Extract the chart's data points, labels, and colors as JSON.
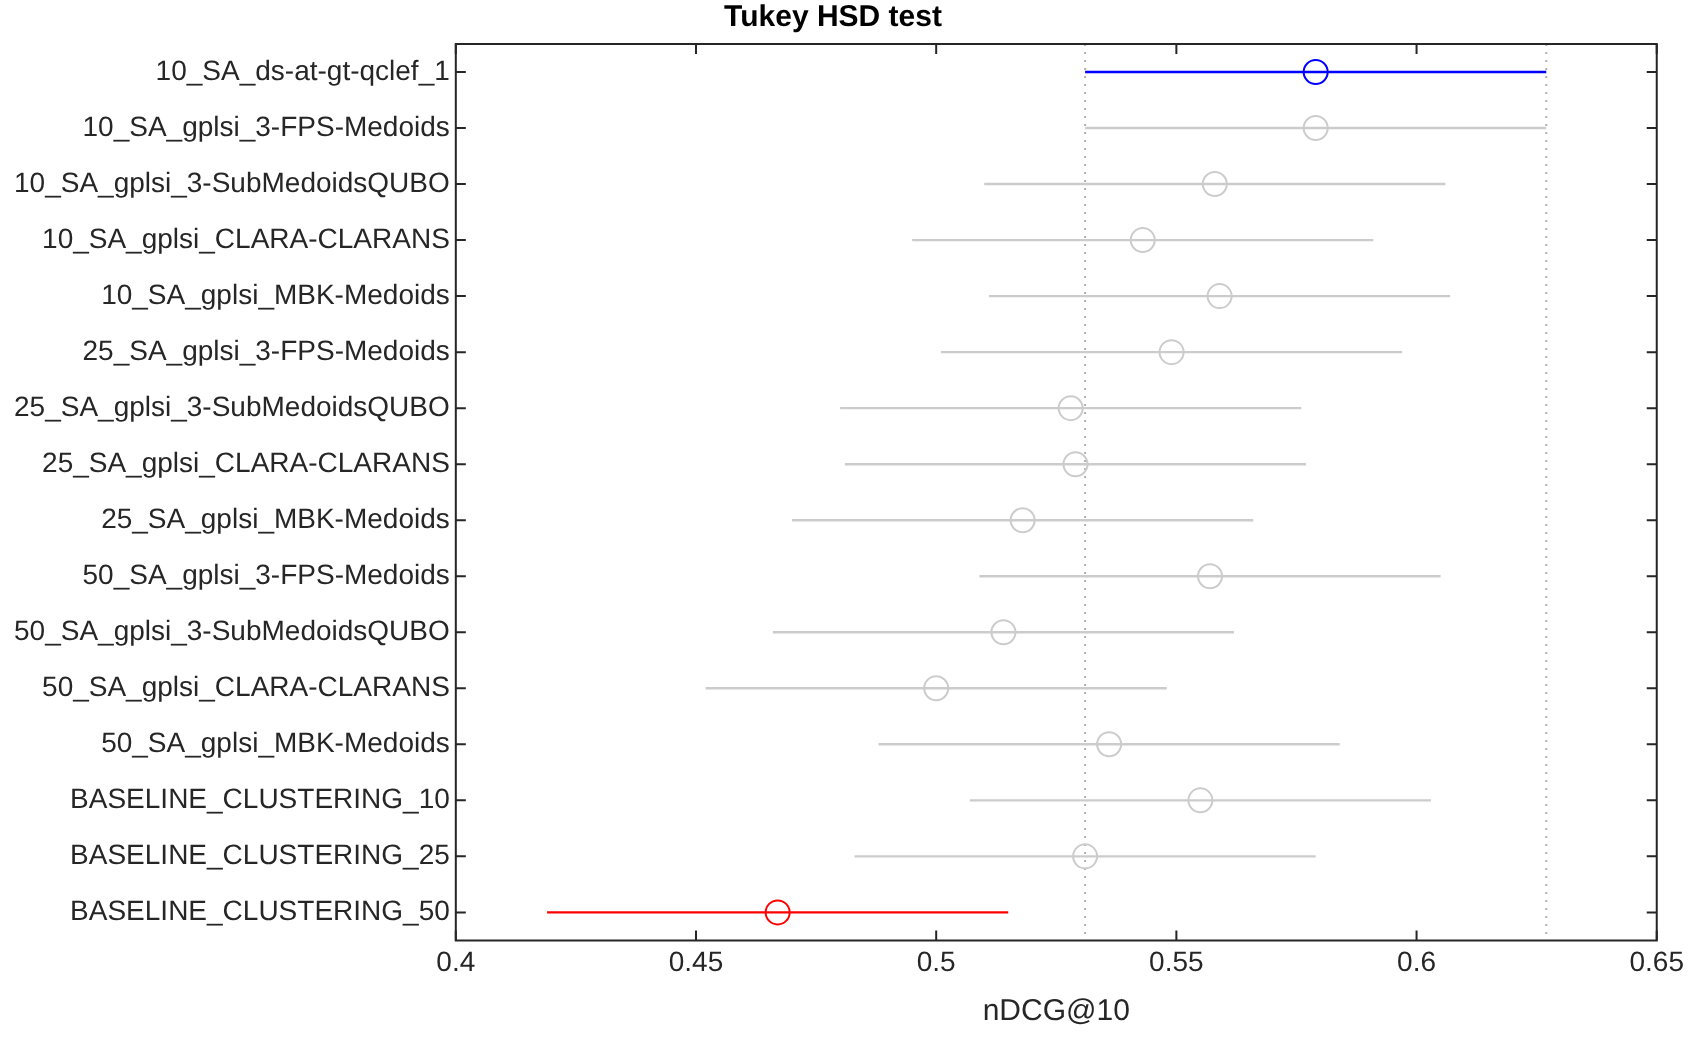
{
  "chart_data": {
    "type": "scatter",
    "orientation": "horizontal",
    "title": "Tukey HSD test",
    "xlabel": "nDCG@10",
    "categories": [
      "10_SA_ds-at-gt-qclef_1",
      "10_SA_gplsi_3-FPS-Medoids",
      "10_SA_gplsi_3-SubMedoidsQUBO",
      "10_SA_gplsi_CLARA-CLARANS",
      "10_SA_gplsi_MBK-Medoids",
      "25_SA_gplsi_3-FPS-Medoids",
      "25_SA_gplsi_3-SubMedoidsQUBO",
      "25_SA_gplsi_CLARA-CLARANS",
      "25_SA_gplsi_MBK-Medoids",
      "50_SA_gplsi_3-FPS-Medoids",
      "50_SA_gplsi_3-SubMedoidsQUBO",
      "50_SA_gplsi_CLARA-CLARANS",
      "50_SA_gplsi_MBK-Medoids",
      "BASELINE_CLUSTERING_10",
      "BASELINE_CLUSTERING_25",
      "BASELINE_CLUSTERING_50"
    ],
    "values": [
      0.579,
      0.579,
      0.558,
      0.543,
      0.559,
      0.549,
      0.528,
      0.529,
      0.518,
      0.557,
      0.514,
      0.5,
      0.536,
      0.555,
      0.531,
      0.467
    ],
    "errors": [
      0.048,
      0.048,
      0.048,
      0.048,
      0.048,
      0.048,
      0.048,
      0.048,
      0.048,
      0.048,
      0.048,
      0.048,
      0.048,
      0.048,
      0.048,
      0.048
    ],
    "colors": [
      "#0000ff",
      "#cccccc",
      "#cccccc",
      "#cccccc",
      "#cccccc",
      "#cccccc",
      "#cccccc",
      "#cccccc",
      "#cccccc",
      "#cccccc",
      "#cccccc",
      "#cccccc",
      "#cccccc",
      "#cccccc",
      "#cccccc",
      "#ff0000"
    ],
    "marker": "circle",
    "xlim": [
      0.4,
      0.65
    ],
    "xticks": [
      0.4,
      0.45,
      0.5,
      0.55,
      0.6,
      0.65
    ],
    "ref_lines": [
      {
        "axis": "x",
        "value": 0.531,
        "color": "#b0b0b0",
        "line_style": "dotted"
      },
      {
        "axis": "x",
        "value": 0.627,
        "color": "#b0b0b0",
        "line_style": "dotted"
      }
    ]
  }
}
